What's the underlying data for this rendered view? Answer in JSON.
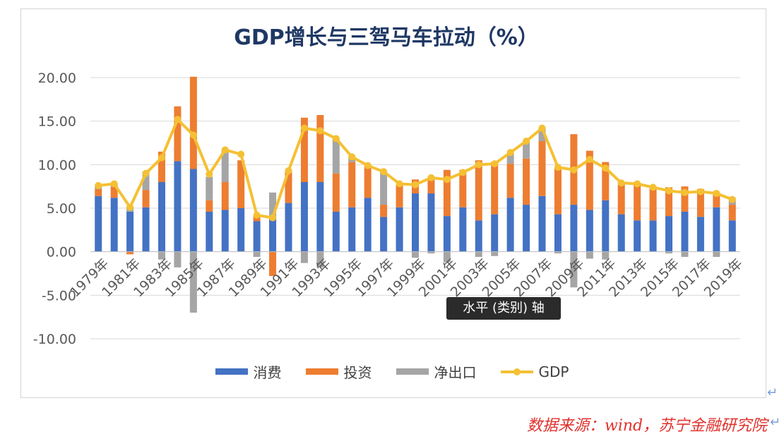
{
  "chart_data": {
    "type": "bar",
    "title": "GDP增长与三驾马车拉动（%）",
    "xlabel": "",
    "ylabel": "",
    "ylim": [
      -10,
      20
    ],
    "yticks": [
      "20.00",
      "15.00",
      "10.00",
      "5.00",
      "0.00",
      "-5.00",
      "-10.00"
    ],
    "categories": [
      "1979年",
      "1980年",
      "1981年",
      "1982年",
      "1983年",
      "1984年",
      "1985年",
      "1986年",
      "1987年",
      "1988年",
      "1989年",
      "1990年",
      "1991年",
      "1992年",
      "1993年",
      "1994年",
      "1995年",
      "1996年",
      "1997年",
      "1998年",
      "1999年",
      "2000年",
      "2001年",
      "2002年",
      "2003年",
      "2004年",
      "2005年",
      "2006年",
      "2007年",
      "2008年",
      "2009年",
      "2010年",
      "2011年",
      "2012年",
      "2013年",
      "2014年",
      "2015年",
      "2016年",
      "2017年",
      "2018年",
      "2019年"
    ],
    "tick_labels": [
      "1979年",
      "1981年",
      "1983年",
      "1985年",
      "1987年",
      "1989年",
      "1991年",
      "1993年",
      "1995年",
      "1997年",
      "1999年",
      "2001年",
      "2003年",
      "2005年",
      "2007年",
      "2009年",
      "2011年",
      "2013年",
      "2015年",
      "2017年",
      "2019年"
    ],
    "series": [
      {
        "name": "消费",
        "color": "#4472c4",
        "values": [
          6.4,
          6.2,
          4.6,
          5.1,
          8.0,
          10.4,
          9.5,
          4.6,
          4.8,
          5.0,
          3.5,
          4.0,
          5.6,
          8.0,
          8.0,
          4.6,
          5.1,
          6.2,
          4.0,
          5.1,
          6.7,
          6.7,
          4.1,
          5.1,
          3.6,
          4.3,
          6.2,
          5.4,
          6.4,
          4.3,
          5.4,
          4.8,
          5.9,
          4.3,
          3.6,
          3.6,
          4.1,
          4.6,
          4.0,
          5.1,
          3.6
        ]
      },
      {
        "name": "投资",
        "color": "#ed7d31",
        "values": [
          0.8,
          1.3,
          -0.3,
          2.0,
          3.5,
          6.3,
          10.6,
          1.3,
          3.2,
          5.5,
          0.6,
          -2.8,
          3.6,
          7.4,
          7.7,
          4.4,
          5.2,
          3.6,
          1.4,
          2.6,
          1.6,
          1.8,
          5.3,
          4.3,
          6.9,
          6.0,
          3.9,
          5.3,
          6.3,
          5.4,
          8.1,
          6.8,
          4.4,
          3.4,
          4.1,
          3.7,
          3.3,
          2.9,
          3.2,
          1.7,
          1.8
        ]
      },
      {
        "name": "净出口",
        "color": "#a5a5a5",
        "values": [
          0.4,
          0.3,
          0.6,
          2.1,
          -0.9,
          -1.8,
          -7.0,
          2.7,
          3.7,
          0.0,
          -0.6,
          2.8,
          0.2,
          -1.3,
          -1.8,
          4.0,
          0.6,
          0.0,
          3.9,
          0.1,
          -0.7,
          -0.2,
          -1.2,
          0.0,
          -0.6,
          -0.5,
          1.2,
          2.0,
          1.5,
          -0.2,
          -4.1,
          -0.8,
          -0.9,
          0.2,
          0.0,
          0.2,
          -0.2,
          -0.6,
          0.0,
          -0.6,
          0.8
        ]
      },
      {
        "name": "GDP",
        "color": "#f5c033",
        "values": [
          7.6,
          7.8,
          5.1,
          9.0,
          10.8,
          15.2,
          13.4,
          8.9,
          11.7,
          11.2,
          4.2,
          3.9,
          9.3,
          14.2,
          13.9,
          13.0,
          10.9,
          9.9,
          9.2,
          7.8,
          7.7,
          8.5,
          8.3,
          9.1,
          10.0,
          10.1,
          11.4,
          12.7,
          14.2,
          9.7,
          9.4,
          10.6,
          9.6,
          7.9,
          7.8,
          7.4,
          7.0,
          6.8,
          6.9,
          6.7,
          6.0
        ]
      }
    ],
    "legend_position": "bottom",
    "grid": true
  },
  "tooltip": "水平 (类别) 轴",
  "source": "数据来源：wind，苏宁金融研究院",
  "paragraph_mark": "↵"
}
